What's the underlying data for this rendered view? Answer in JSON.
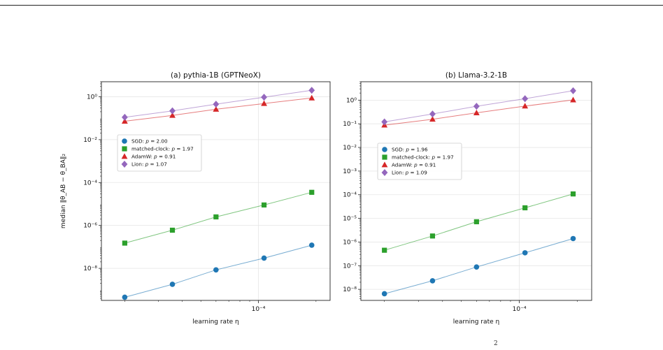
{
  "chart_data": [
    {
      "type": "scatter",
      "title": "(a) pythia-1B  (GPTNeoX)",
      "xlabel": "learning rate η",
      "ylabel": "median ‖θ_AB − θ_BA‖₂",
      "x_scale": "log",
      "y_scale": "log",
      "xlim": [
        1.51e-05,
        0.000237
      ],
      "ylim": [
        3.2e-10,
        5.0
      ],
      "x_tick_labels": [
        {
          "value": 0.0001,
          "label": "10⁻⁴"
        }
      ],
      "y_tick_labels": [
        {
          "value": 1,
          "label": "10⁰"
        },
        {
          "value": 0.01,
          "label": "10⁻²"
        },
        {
          "value": 0.0001,
          "label": "10⁻⁴"
        },
        {
          "value": 1e-06,
          "label": "10⁻⁶"
        },
        {
          "value": 1e-08,
          "label": "10⁻⁸"
        }
      ],
      "grid": true,
      "legend_position": "upper-left",
      "x": [
        2e-05,
        3.55e-05,
        6e-05,
        0.000107,
        0.00019
      ],
      "series": [
        {
          "name": "SGD",
          "legend_label": "SGD: p = 2.00",
          "marker": "circle",
          "color": "#1f77b4",
          "values": [
            4.5e-10,
            1.8e-09,
            8.5e-09,
            3e-08,
            1.2e-07
          ]
        },
        {
          "name": "matched-clock",
          "legend_label": "matched-clock: p = 1.97",
          "marker": "square",
          "color": "#2ca02c",
          "values": [
            1.5e-07,
            6e-07,
            2.5e-06,
            9e-06,
            3.5e-05
          ]
        },
        {
          "name": "AdamW",
          "legend_label": "AdamW: p = 0.91",
          "marker": "triangle",
          "color": "#d62728",
          "values": [
            0.072,
            0.135,
            0.26,
            0.48,
            0.87
          ]
        },
        {
          "name": "Lion",
          "legend_label": "Lion: p = 1.07",
          "marker": "diamond",
          "color": "#9467bd",
          "values": [
            0.11,
            0.22,
            0.45,
            0.95,
            2.0
          ]
        }
      ]
    },
    {
      "type": "scatter",
      "title": "(b) Llama-3.2-1B",
      "xlabel": "learning rate η",
      "ylabel": "",
      "x_scale": "log",
      "y_scale": "log",
      "xlim": [
        1.51e-05,
        0.000237
      ],
      "ylim": [
        3.4e-09,
        6.0
      ],
      "x_tick_labels": [
        {
          "value": 0.0001,
          "label": "10⁻⁴"
        }
      ],
      "y_tick_labels": [
        {
          "value": 1,
          "label": "10⁰"
        },
        {
          "value": 0.1,
          "label": "10⁻¹"
        },
        {
          "value": 0.01,
          "label": "10⁻²"
        },
        {
          "value": 0.001,
          "label": "10⁻³"
        },
        {
          "value": 0.0001,
          "label": "10⁻⁴"
        },
        {
          "value": 1e-05,
          "label": "10⁻⁵"
        },
        {
          "value": 1e-06,
          "label": "10⁻⁶"
        },
        {
          "value": 1e-07,
          "label": "10⁻⁷"
        },
        {
          "value": 1e-08,
          "label": "10⁻⁸"
        }
      ],
      "grid": true,
      "legend_position": "upper-left",
      "x": [
        2e-05,
        3.55e-05,
        6e-05,
        0.000107,
        0.00019
      ],
      "series": [
        {
          "name": "SGD",
          "legend_label": "SGD: p = 1.96",
          "marker": "circle",
          "color": "#1f77b4",
          "values": [
            6.5e-09,
            2.3e-08,
            8.8e-08,
            3.5e-07,
            1.4e-06
          ]
        },
        {
          "name": "matched-clock",
          "legend_label": "matched-clock: p = 1.97",
          "marker": "square",
          "color": "#2ca02c",
          "values": [
            4.5e-07,
            1.8e-06,
            7.2e-06,
            2.8e-05,
            0.000108
          ]
        },
        {
          "name": "AdamW",
          "legend_label": "AdamW: p = 0.91",
          "marker": "triangle",
          "color": "#d62728",
          "values": [
            0.088,
            0.155,
            0.29,
            0.56,
            1.02
          ]
        },
        {
          "name": "Lion",
          "legend_label": "Lion: p = 1.09",
          "marker": "diamond",
          "color": "#9467bd",
          "values": [
            0.12,
            0.26,
            0.55,
            1.15,
            2.5
          ]
        }
      ]
    }
  ],
  "footer_fragment": "2"
}
